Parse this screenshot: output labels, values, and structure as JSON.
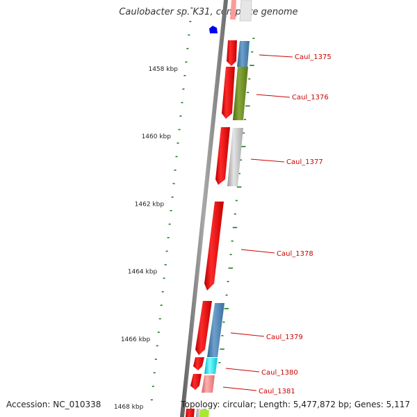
{
  "title": "Caulobacter sp. K31, complete genome",
  "footer": {
    "accession": "Accession: NC_010338",
    "summary": "Topology: circular; Length: 5,477,872 bp; Genes: 5,117"
  },
  "ruler": {
    "labels": [
      {
        "text": "1458 kbp",
        "kbp": 1458
      },
      {
        "text": "1460 kbp",
        "kbp": 1460
      },
      {
        "text": "1462 kbp",
        "kbp": 1462
      },
      {
        "text": "1464 kbp",
        "kbp": 1464
      },
      {
        "text": "1466 kbp",
        "kbp": 1466
      },
      {
        "text": "1468 kbp",
        "kbp": 1468
      }
    ]
  },
  "genes": [
    {
      "label": "Caul_1375",
      "feature_color": "#4f86b8",
      "strand": "minus"
    },
    {
      "label": "Caul_1376",
      "feature_color": "#6b8e23",
      "strand": "minus"
    },
    {
      "label": "Caul_1377",
      "feature_color": "#c8c8c8",
      "strand": "minus"
    },
    {
      "label": "Caul_1378",
      "feature_color": "#ff0000",
      "strand": "minus"
    },
    {
      "label": "Caul_1379",
      "feature_color": "#4f86b8",
      "strand": "minus"
    },
    {
      "label": "Caul_1380",
      "feature_color": "#00e5ee",
      "strand": "minus"
    },
    {
      "label": "Caul_1381",
      "feature_color": "#f08080",
      "strand": "minus"
    }
  ],
  "colors": {
    "label": "#cc0000",
    "cds": "#ff0000",
    "ticks": "#1a7a1a",
    "backbone": "#808080",
    "marker": "#0000ee"
  }
}
